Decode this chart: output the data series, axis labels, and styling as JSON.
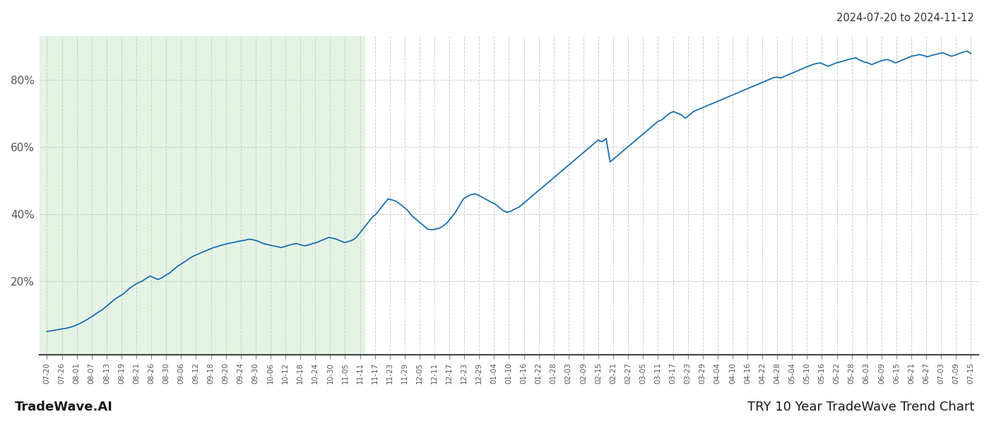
{
  "title_top_right": "2024-07-20 to 2024-11-12",
  "title_bottom_left": "TradeWave.AI",
  "title_bottom_right": "TRY 10 Year TradeWave Trend Chart",
  "line_color": "#1a6faf",
  "line_width": 1.3,
  "shade_color": "#d4ecd4",
  "shade_alpha": 0.6,
  "background_color": "#ffffff",
  "grid_color": "#cccccc",
  "grid_style": "--",
  "ylim": [
    -2,
    93
  ],
  "yticks": [
    20,
    40,
    60,
    80
  ],
  "shade_start_label": "07-20",
  "shade_end_label": "11-11",
  "x_labels": [
    "07-20",
    "07-26",
    "08-01",
    "08-07",
    "08-13",
    "08-19",
    "08-21",
    "08-26",
    "08-30",
    "09-06",
    "09-12",
    "09-18",
    "09-20",
    "09-24",
    "09-30",
    "10-06",
    "10-12",
    "10-18",
    "10-24",
    "10-30",
    "11-05",
    "11-11",
    "11-17",
    "11-23",
    "11-29",
    "12-05",
    "12-11",
    "12-17",
    "12-23",
    "12-29",
    "01-04",
    "01-10",
    "01-16",
    "01-22",
    "01-28",
    "02-03",
    "02-09",
    "02-15",
    "02-21",
    "02-27",
    "03-05",
    "03-11",
    "03-17",
    "03-23",
    "03-29",
    "04-04",
    "04-10",
    "04-16",
    "04-22",
    "04-28",
    "05-04",
    "05-10",
    "05-16",
    "05-22",
    "05-28",
    "06-03",
    "06-09",
    "06-15",
    "06-21",
    "06-27",
    "07-03",
    "07-09",
    "07-15"
  ],
  "n_data_points": 116,
  "dense_y": [
    5.0,
    5.2,
    5.4,
    5.6,
    5.8,
    6.0,
    6.3,
    6.7,
    7.2,
    7.8,
    8.5,
    9.2,
    10.0,
    10.8,
    11.5,
    12.5,
    13.5,
    14.5,
    15.3,
    16.0,
    17.0,
    18.0,
    18.8,
    19.5,
    20.0,
    20.8,
    21.5,
    21.0,
    20.5,
    21.0,
    21.8,
    22.5,
    23.5,
    24.5,
    25.2,
    26.0,
    26.8,
    27.5,
    28.0,
    28.5,
    29.0,
    29.5,
    30.0,
    30.3,
    30.7,
    31.0,
    31.3,
    31.5,
    31.8,
    32.0,
    32.2,
    32.5,
    32.3,
    32.0,
    31.5,
    31.0,
    30.8,
    30.5,
    30.3,
    30.0,
    30.3,
    30.7,
    31.0,
    31.2,
    30.8,
    30.5,
    30.8,
    31.2,
    31.5,
    32.0,
    32.5,
    33.0,
    32.8,
    32.5,
    32.0,
    31.5,
    31.8,
    32.2,
    33.0,
    34.5,
    36.0,
    37.5,
    39.0,
    40.0,
    41.5,
    43.0,
    44.5,
    44.2,
    43.8,
    43.0,
    42.0,
    41.0,
    39.5,
    38.5,
    37.5,
    36.5,
    35.5,
    35.3,
    35.5,
    35.8,
    36.5,
    37.5,
    39.0,
    40.5,
    42.5,
    44.5,
    45.2,
    45.8,
    46.0,
    45.5,
    44.8,
    44.2,
    43.5,
    43.0,
    42.0,
    41.0,
    40.5,
    40.8,
    41.5,
    42.0,
    43.0,
    44.0,
    45.0,
    46.0,
    47.0,
    48.0,
    49.0,
    50.0,
    51.0,
    52.0,
    53.0,
    54.0,
    55.0,
    56.0,
    57.0,
    58.0,
    59.0,
    60.0,
    61.0,
    62.0,
    61.5,
    62.5,
    55.5,
    56.5,
    57.5,
    58.5,
    59.5,
    60.5,
    61.5,
    62.5,
    63.5,
    64.5,
    65.5,
    66.5,
    67.5,
    68.0,
    69.0,
    70.0,
    70.5,
    70.0,
    69.5,
    68.5,
    69.5,
    70.5,
    71.0,
    71.5,
    72.0,
    72.5,
    73.0,
    73.5,
    74.0,
    74.5,
    75.0,
    75.5,
    76.0,
    76.5,
    77.0,
    77.5,
    78.0,
    78.5,
    79.0,
    79.5,
    80.0,
    80.5,
    80.8,
    80.5,
    81.0,
    81.5,
    82.0,
    82.5,
    83.0,
    83.5,
    84.0,
    84.5,
    84.8,
    85.0,
    84.5,
    84.0,
    84.5,
    85.0,
    85.3,
    85.6,
    86.0,
    86.3,
    86.5,
    85.8,
    85.3,
    85.0,
    84.5,
    85.0,
    85.5,
    85.8,
    86.0,
    85.5,
    85.0,
    85.5,
    86.0,
    86.5,
    87.0,
    87.2,
    87.5,
    87.2,
    86.8,
    87.2,
    87.5,
    87.8,
    88.0,
    87.5,
    87.0,
    87.3,
    87.8,
    88.2,
    88.5,
    87.8
  ]
}
